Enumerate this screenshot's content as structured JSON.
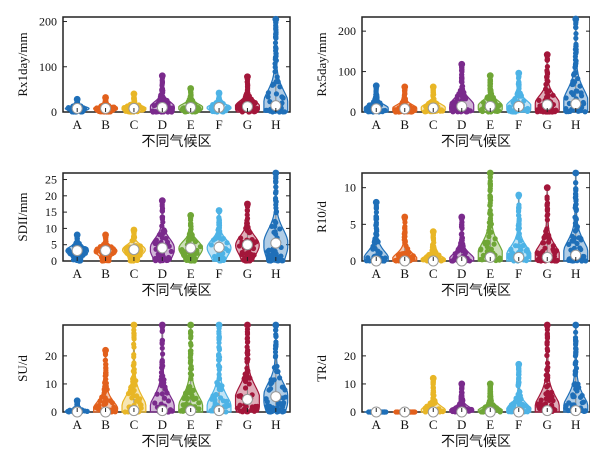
{
  "colors": [
    "#1f6fb8",
    "#e2601c",
    "#e8b626",
    "#7a2a8c",
    "#6fa636",
    "#4db3e6",
    "#a3163a",
    "#1f6fb8"
  ],
  "chart_data": [
    {
      "type": "violin",
      "ylabel": "Rx1day/mm",
      "xlabel": "不同气候区",
      "categories": [
        "A",
        "B",
        "C",
        "D",
        "E",
        "F",
        "G",
        "H"
      ],
      "ylim": [
        0,
        210
      ],
      "yticks": [
        0,
        100,
        200
      ],
      "medians": [
        8,
        8,
        8,
        10,
        10,
        10,
        12,
        14
      ],
      "maxima": [
        28,
        32,
        40,
        80,
        52,
        42,
        78,
        205
      ]
    },
    {
      "type": "violin",
      "ylabel": "Rx5day/mm",
      "xlabel": "不同气候区",
      "categories": [
        "A",
        "B",
        "C",
        "D",
        "E",
        "F",
        "G",
        "H"
      ],
      "ylim": [
        0,
        235
      ],
      "yticks": [
        0,
        100,
        200
      ],
      "medians": [
        8,
        8,
        10,
        14,
        14,
        14,
        18,
        20
      ],
      "maxima": [
        65,
        62,
        62,
        118,
        90,
        96,
        142,
        230
      ]
    },
    {
      "type": "violin",
      "ylabel": "SDII/mm",
      "xlabel": "不同气候区",
      "categories": [
        "A",
        "B",
        "C",
        "D",
        "E",
        "F",
        "G",
        "H"
      ],
      "ylim": [
        0,
        27
      ],
      "yticks": [
        0,
        5,
        10,
        15,
        20,
        25
      ],
      "medians": [
        3.2,
        3.2,
        3.5,
        4,
        4,
        4.2,
        5,
        5.5
      ],
      "maxima": [
        8,
        8,
        9.5,
        18.5,
        14,
        15.5,
        17.5,
        27
      ]
    },
    {
      "type": "violin",
      "ylabel": "R10/d",
      "xlabel": "不同气候区",
      "categories": [
        "A",
        "B",
        "C",
        "D",
        "E",
        "F",
        "G",
        "H"
      ],
      "ylim": [
        0,
        12
      ],
      "yticks": [
        0,
        5,
        10
      ],
      "medians": [
        0,
        0,
        0,
        0,
        0.5,
        0.5,
        0.5,
        0.8
      ],
      "maxima": [
        8,
        6,
        4,
        6,
        12,
        9,
        10,
        12
      ]
    },
    {
      "type": "violin",
      "ylabel": "SU/d",
      "xlabel": "不同气候区",
      "categories": [
        "A",
        "B",
        "C",
        "D",
        "E",
        "F",
        "G",
        "H"
      ],
      "ylim": [
        0,
        31
      ],
      "yticks": [
        0,
        10,
        20
      ],
      "medians": [
        0,
        0,
        0.5,
        0.5,
        0.5,
        0.5,
        4.5,
        5.5
      ],
      "maxima": [
        4,
        22,
        31,
        31,
        31,
        31,
        31,
        31
      ]
    },
    {
      "type": "violin",
      "ylabel": "TR/d",
      "xlabel": "不同气候区",
      "categories": [
        "A",
        "B",
        "C",
        "D",
        "E",
        "F",
        "G",
        "H"
      ],
      "ylim": [
        0,
        31
      ],
      "yticks": [
        0,
        10,
        20
      ],
      "medians": [
        0,
        0,
        0,
        0,
        0,
        0,
        0.5,
        0.5
      ],
      "maxima": [
        0,
        0,
        12,
        10,
        10,
        17,
        31,
        31
      ]
    }
  ]
}
